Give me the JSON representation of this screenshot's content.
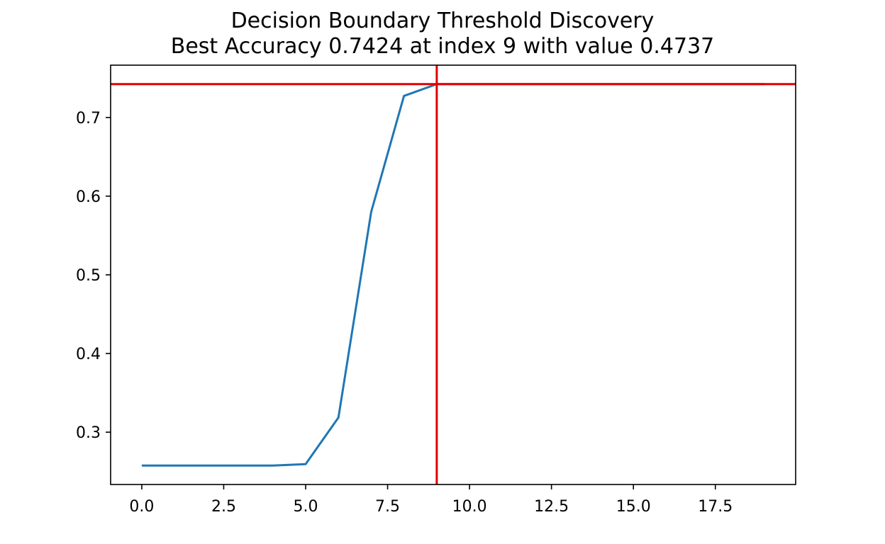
{
  "chart_data": {
    "type": "line",
    "title": "Decision Boundary Threshold Discovery",
    "subtitle": "Best Accuracy 0.7424 at index 9 with value 0.4737",
    "xlabel": "",
    "ylabel": "",
    "xlim": [
      -0.95,
      19.95
    ],
    "ylim": [
      0.2335,
      0.7665
    ],
    "xticks": [
      0.0,
      2.5,
      5.0,
      7.5,
      10.0,
      12.5,
      15.0,
      17.5
    ],
    "xtick_labels": [
      "0.0",
      "2.5",
      "5.0",
      "7.5",
      "10.0",
      "12.5",
      "15.0",
      "17.5"
    ],
    "yticks": [
      0.3,
      0.4,
      0.5,
      0.6,
      0.7
    ],
    "ytick_labels": [
      "0.3",
      "0.4",
      "0.5",
      "0.6",
      "0.7"
    ],
    "grid": false,
    "series": [
      {
        "color": "#1f77b4",
        "x": [
          0,
          1,
          2,
          3,
          4,
          5,
          6,
          7,
          8,
          9,
          10,
          11,
          12,
          13,
          14,
          15,
          16,
          17,
          18,
          19
        ],
        "values": [
          0.2576,
          0.2576,
          0.2576,
          0.2576,
          0.2576,
          0.2594,
          0.3186,
          0.58,
          0.7274,
          0.7424,
          0.7424,
          0.7424,
          0.7424,
          0.7424,
          0.7424,
          0.7424,
          0.7424,
          0.7424,
          0.7424,
          0.7424
        ]
      }
    ],
    "reference_lines": [
      {
        "orientation": "horizontal",
        "value": 0.7424,
        "color": "#e00000"
      },
      {
        "orientation": "vertical",
        "value": 9,
        "color": "#e00000"
      }
    ]
  }
}
